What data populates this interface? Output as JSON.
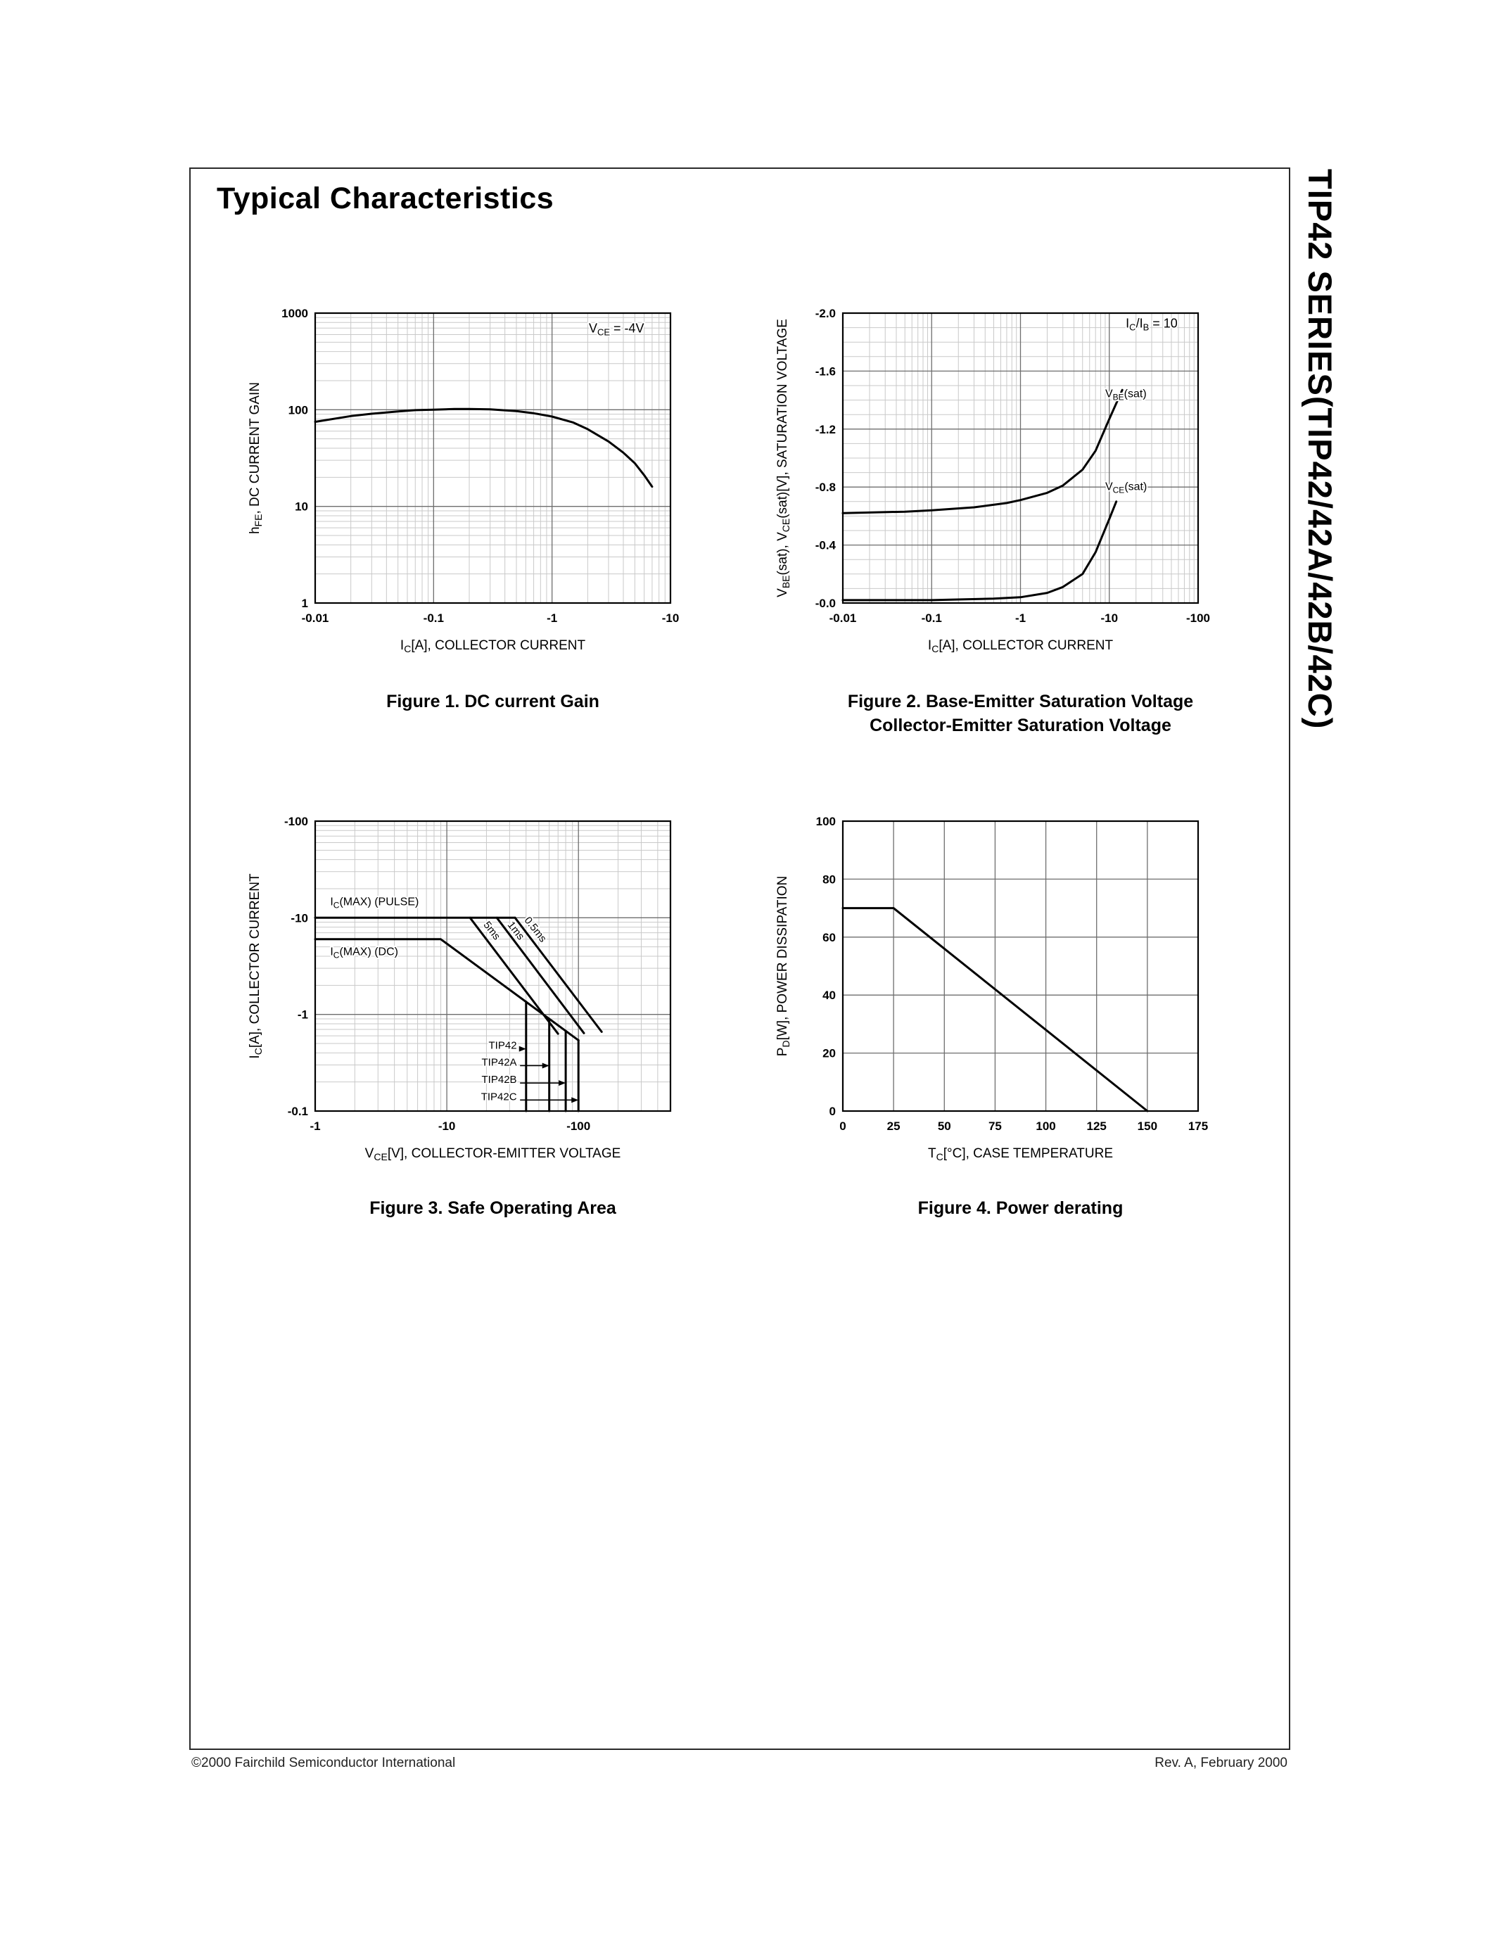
{
  "page": {
    "title": "Typical Characteristics",
    "side_title": "TIP42 SERIES(TIP42/42A/42B/42C)",
    "footer_left": "©2000 Fairchild Semiconductor International",
    "footer_right": "Rev. A, February 2000"
  },
  "chart_data": [
    {
      "id": "figure1",
      "type": "line",
      "caption_lines": [
        "Figure 1. DC current Gain"
      ],
      "xlabel": "I~C~[A], COLLECTOR CURRENT",
      "ylabel": "h~FE~, DC CURRENT GAIN",
      "x": {
        "scale": "log",
        "min": 0.01,
        "max": 10,
        "ticks": [
          {
            "v": 0.01,
            "l": "-0.01"
          },
          {
            "v": 0.1,
            "l": "-0.1"
          },
          {
            "v": 1,
            "l": "-1"
          },
          {
            "v": 10,
            "l": "-10"
          }
        ]
      },
      "y": {
        "scale": "log",
        "min": 1,
        "max": 1000,
        "ticks": [
          {
            "v": 1,
            "l": "1"
          },
          {
            "v": 10,
            "l": "10"
          },
          {
            "v": 100,
            "l": "100"
          },
          {
            "v": 1000,
            "l": "1000"
          }
        ]
      },
      "series": [
        {
          "name": "hFE vs IC",
          "points": [
            [
              0.01,
              75
            ],
            [
              0.02,
              86
            ],
            [
              0.03,
              91
            ],
            [
              0.05,
              96
            ],
            [
              0.07,
              99
            ],
            [
              0.1,
              100
            ],
            [
              0.15,
              102
            ],
            [
              0.2,
              102
            ],
            [
              0.3,
              101
            ],
            [
              0.5,
              97
            ],
            [
              0.7,
              92
            ],
            [
              1,
              85
            ],
            [
              1.5,
              74
            ],
            [
              2,
              63
            ],
            [
              3,
              47
            ],
            [
              4,
              36
            ],
            [
              5,
              28
            ],
            [
              6,
              21
            ],
            [
              7,
              16
            ]
          ]
        }
      ],
      "labels": [
        {
          "x": 3.5,
          "y": 630,
          "text": "V~CE~ = -4V",
          "anchor": "middle",
          "size": 18
        }
      ]
    },
    {
      "id": "figure2",
      "type": "line",
      "caption_lines": [
        "Figure 2. Base-Emitter Saturation Voltage",
        "Collector-Emitter Saturation Voltage"
      ],
      "xlabel": "I~C~[A], COLLECTOR CURRENT",
      "ylabel": "V~BE~(sat), V~CE~(sat)[V], SATURATION VOLTAGE",
      "x": {
        "scale": "log",
        "min": 0.01,
        "max": 100,
        "ticks": [
          {
            "v": 0.01,
            "l": "-0.01"
          },
          {
            "v": 0.1,
            "l": "-0.1"
          },
          {
            "v": 1,
            "l": "-1"
          },
          {
            "v": 10,
            "l": "-10"
          },
          {
            "v": 100,
            "l": "-100"
          }
        ]
      },
      "y": {
        "scale": "linear",
        "min": 0,
        "max": 2,
        "major_step": 0.4,
        "minor_step": 0.1,
        "ticks": [
          {
            "v": 0,
            "l": "-0.0"
          },
          {
            "v": 0.4,
            "l": "-0.4"
          },
          {
            "v": 0.8,
            "l": "-0.8"
          },
          {
            "v": 1.2,
            "l": "-1.2"
          },
          {
            "v": 1.6,
            "l": "-1.6"
          },
          {
            "v": 2,
            "l": "-2.0"
          }
        ]
      },
      "series": [
        {
          "name": "VBE(sat)",
          "points": [
            [
              0.01,
              0.62
            ],
            [
              0.05,
              0.63
            ],
            [
              0.1,
              0.64
            ],
            [
              0.3,
              0.66
            ],
            [
              0.7,
              0.69
            ],
            [
              1,
              0.71
            ],
            [
              2,
              0.76
            ],
            [
              3,
              0.81
            ],
            [
              5,
              0.92
            ],
            [
              7,
              1.05
            ],
            [
              10,
              1.27
            ],
            [
              14,
              1.47
            ]
          ]
        },
        {
          "name": "VCE(sat)",
          "points": [
            [
              0.01,
              0.02
            ],
            [
              0.1,
              0.02
            ],
            [
              0.5,
              0.03
            ],
            [
              1,
              0.04
            ],
            [
              2,
              0.07
            ],
            [
              3,
              0.11
            ],
            [
              5,
              0.2
            ],
            [
              7,
              0.35
            ],
            [
              10,
              0.58
            ],
            [
              12,
              0.7
            ]
          ]
        }
      ],
      "labels": [
        {
          "x": 30,
          "y": 1.9,
          "text": "I~C~/I~B~ = 10",
          "anchor": "middle",
          "size": 18
        },
        {
          "x": 9,
          "y": 1.42,
          "text": "V~BE~(sat)",
          "anchor": "start",
          "size": 16
        },
        {
          "x": 9,
          "y": 0.78,
          "text": "V~CE~(sat)",
          "anchor": "start",
          "size": 16
        }
      ]
    },
    {
      "id": "figure3",
      "type": "line",
      "caption_lines": [
        "Figure 3. Safe Operating Area"
      ],
      "xlabel": "V~CE~[V], COLLECTOR-EMITTER VOLTAGE",
      "ylabel": "I~C~[A], COLLECTOR CURRENT",
      "x": {
        "scale": "log",
        "min": 1,
        "max": 500,
        "ticks": [
          {
            "v": 1,
            "l": "-1"
          },
          {
            "v": 10,
            "l": "-10"
          },
          {
            "v": 100,
            "l": "-100"
          }
        ]
      },
      "y": {
        "scale": "log",
        "min": 0.1,
        "max": 100,
        "ticks": [
          {
            "v": 0.1,
            "l": "-0.1"
          },
          {
            "v": 1,
            "l": "-1"
          },
          {
            "v": 10,
            "l": "-10"
          },
          {
            "v": 100,
            "l": "-100"
          }
        ]
      },
      "series": [
        {
          "name": "IC(MAX)(PULSE)",
          "points": [
            [
              1,
              10
            ],
            [
              33,
              10
            ]
          ]
        },
        {
          "name": "IC(MAX)(DC)",
          "points": [
            [
              1,
              6
            ],
            [
              9,
              6
            ],
            [
              100,
              0.54
            ]
          ]
        },
        {
          "name": "0.5ms",
          "points": [
            [
              33,
              10
            ],
            [
              150,
              0.66
            ]
          ]
        },
        {
          "name": "1ms",
          "points": [
            [
              24,
              10
            ],
            [
              110,
              0.64
            ]
          ]
        },
        {
          "name": "5ms",
          "points": [
            [
              15,
              10
            ],
            [
              70,
              0.63
            ]
          ]
        },
        {
          "name": "TIP42 voltage limit 40V",
          "points": [
            [
              40,
              1.35
            ],
            [
              40,
              0.1
            ]
          ]
        },
        {
          "name": "TIP42A voltage limit 60V",
          "points": [
            [
              60,
              0.9
            ],
            [
              60,
              0.1
            ]
          ]
        },
        {
          "name": "TIP42B voltage limit 80V",
          "points": [
            [
              80,
              0.675
            ],
            [
              80,
              0.1
            ]
          ]
        },
        {
          "name": "TIP42C voltage limit 100V",
          "points": [
            [
              100,
              0.54
            ],
            [
              100,
              0.1
            ]
          ]
        }
      ],
      "labels": [
        {
          "x": 1.3,
          "y": 13.5,
          "text": "I~C~(MAX) (PULSE)",
          "anchor": "start",
          "size": 16
        },
        {
          "x": 1.3,
          "y": 4.1,
          "text": "I~C~(MAX) (DC)",
          "anchor": "start",
          "size": 16
        },
        {
          "x": 21,
          "y": 7,
          "text": "5ms",
          "anchor": "middle",
          "rotate": 52,
          "size": 15
        },
        {
          "x": 32,
          "y": 7,
          "text": "1ms",
          "anchor": "middle",
          "rotate": 52,
          "size": 15
        },
        {
          "x": 45,
          "y": 7.2,
          "text": "0.5ms",
          "anchor": "middle",
          "rotate": 52,
          "size": 15
        },
        {
          "x": 34,
          "y": 0.44,
          "text": "TIP42",
          "anchor": "end",
          "size": 15
        },
        {
          "x": 34,
          "y": 0.295,
          "text": "TIP42A",
          "anchor": "end",
          "size": 15
        },
        {
          "x": 34,
          "y": 0.195,
          "text": "TIP42B",
          "anchor": "end",
          "size": 15
        },
        {
          "x": 34,
          "y": 0.13,
          "text": "TIP42C",
          "anchor": "end",
          "size": 15
        }
      ],
      "arrows": [
        {
          "x1": 36,
          "y1": 0.44,
          "x2": 40,
          "y2": 0.44
        },
        {
          "x1": 36,
          "y1": 0.295,
          "x2": 60,
          "y2": 0.295
        },
        {
          "x1": 36,
          "y1": 0.195,
          "x2": 80,
          "y2": 0.195
        },
        {
          "x1": 36,
          "y1": 0.13,
          "x2": 100,
          "y2": 0.13
        }
      ]
    },
    {
      "id": "figure4",
      "type": "line",
      "caption_lines": [
        "Figure 4. Power derating"
      ],
      "xlabel": "T~C~[°C], CASE TEMPERATURE",
      "ylabel": "P~D~[W], POWER DISSIPATION",
      "x": {
        "scale": "linear",
        "min": 0,
        "max": 175,
        "major_step": 25,
        "ticks": [
          {
            "v": 0,
            "l": "0"
          },
          {
            "v": 25,
            "l": "25"
          },
          {
            "v": 50,
            "l": "50"
          },
          {
            "v": 75,
            "l": "75"
          },
          {
            "v": 100,
            "l": "100"
          },
          {
            "v": 125,
            "l": "125"
          },
          {
            "v": 150,
            "l": "150"
          },
          {
            "v": 175,
            "l": "175"
          }
        ]
      },
      "y": {
        "scale": "linear",
        "min": 0,
        "max": 100,
        "major_step": 20,
        "ticks": [
          {
            "v": 0,
            "l": "0"
          },
          {
            "v": 20,
            "l": "20"
          },
          {
            "v": 40,
            "l": "40"
          },
          {
            "v": 60,
            "l": "60"
          },
          {
            "v": 80,
            "l": "80"
          },
          {
            "v": 100,
            "l": "100"
          }
        ]
      },
      "series": [
        {
          "name": "PD vs TC",
          "points": [
            [
              0,
              70
            ],
            [
              25,
              70
            ],
            [
              150,
              0
            ]
          ]
        }
      ]
    }
  ]
}
